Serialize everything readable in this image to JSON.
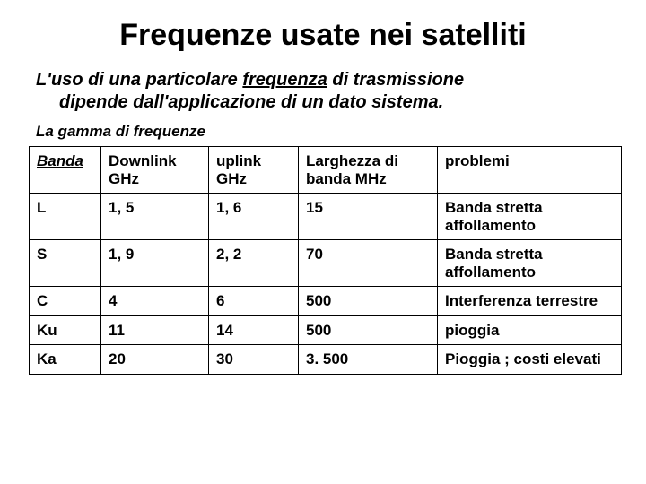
{
  "title": "Frequenze usate nei satelliti",
  "lead": {
    "part1": "L'uso di una particolare ",
    "underlined": "frequenza",
    "part2": " di trasmissione",
    "line2": "dipende dall'applicazione di un dato sistema."
  },
  "caption": "La gamma di frequenze",
  "table": {
    "columns": [
      "Banda",
      "Downlink GHz",
      "uplink GHz",
      "Larghezza di banda MHz",
      "problemi"
    ],
    "rows": [
      [
        "L",
        "1, 5",
        "1, 6",
        "15",
        "Banda stretta affollamento"
      ],
      [
        "S",
        "1, 9",
        "2, 2",
        "70",
        "Banda stretta affollamento"
      ],
      [
        "C",
        "4",
        "6",
        "500",
        "Interferenza terrestre"
      ],
      [
        "Ku",
        "11",
        "14",
        "500",
        "pioggia"
      ],
      [
        "Ka",
        "20",
        "30",
        "3. 500",
        "Pioggia ; costi elevati"
      ]
    ]
  }
}
